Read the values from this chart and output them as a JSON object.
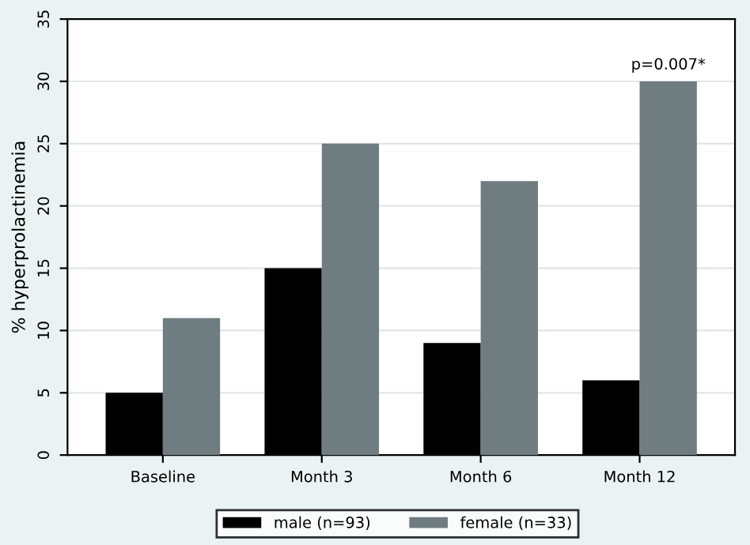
{
  "chart_data": {
    "type": "bar",
    "ylabel": "% hyperprolactinemia",
    "categories": [
      "Baseline",
      "Month 3",
      "Month 6",
      "Month 12"
    ],
    "series": [
      {
        "name": "male (n=93)",
        "color": "#000000",
        "values": [
          5,
          15,
          9,
          6
        ]
      },
      {
        "name": "female (n=33)",
        "color": "#6f7c80",
        "values": [
          11,
          25,
          22,
          30
        ]
      }
    ],
    "annotations": [
      {
        "text": "p=0.007*",
        "x": "Month 12",
        "y": 30
      }
    ],
    "ylim": [
      0,
      35
    ],
    "yticks": [
      0,
      5,
      10,
      15,
      20,
      25,
      30,
      35
    ],
    "grid": "y",
    "legend": "bottom"
  }
}
